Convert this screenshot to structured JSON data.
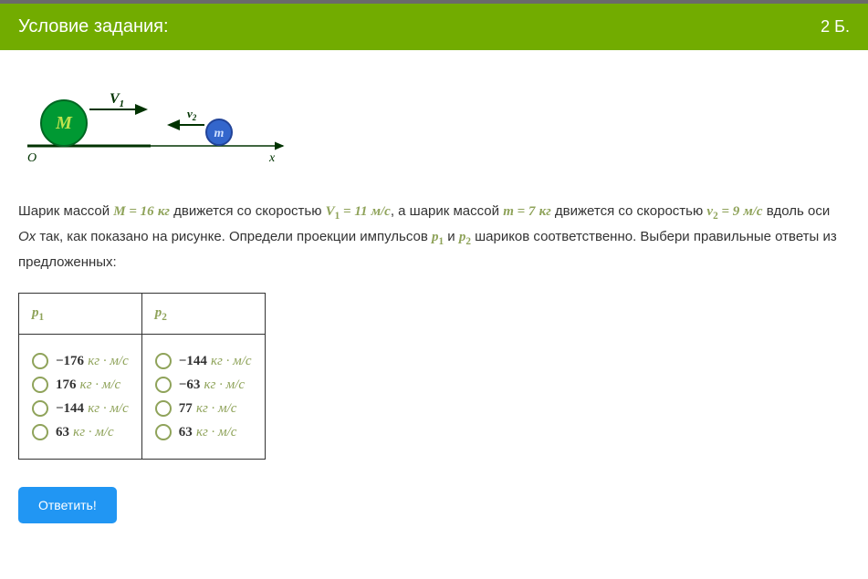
{
  "header": {
    "title": "Условие задания:",
    "points": "2 Б."
  },
  "diagram": {
    "big_label": "M",
    "big_color": "#009933",
    "big_border": "#006622",
    "small_label": "m",
    "small_color": "#3366cc",
    "small_border": "#224499",
    "v1_label": "V",
    "v1_sub": "1",
    "v2_label": "v",
    "v2_sub": "2",
    "origin_label": "O",
    "axis_label": "x",
    "text_color": "#003300"
  },
  "problem": {
    "t1": "Шарик массой ",
    "M_expr": "M = 16",
    "M_unit": "кг",
    "t2": " движется со скоростью ",
    "V1_expr": "V",
    "V1_sub": "1",
    "V1_eq": " = 11",
    "V1_unit": "м/с",
    "t3": ", а шарик массой ",
    "m_expr": "m = 7",
    "m_unit": "кг",
    "t4": " движется со скоростью ",
    "v2_expr": "v",
    "v2_sub": "2",
    "v2_eq": " = 9",
    "v2_unit": "м/с",
    "t5": " вдоль оси ",
    "axis": "Ox",
    "t6": " так, как показано на рисунке. Определи проекции импульсов ",
    "p1": "p",
    "p1_sub": "1",
    "t7": " и ",
    "p2": "p",
    "p2_sub": "2",
    "t8": " шариков соответственно. Выбери правильные ответы из предложенных:"
  },
  "table": {
    "h1": "p",
    "h1_sub": "1",
    "h2": "p",
    "h2_sub": "2",
    "unit": "кг · м/с",
    "col1": [
      "−176",
      "176",
      "−144",
      "63"
    ],
    "col2": [
      "−144",
      "−63",
      "77",
      "63"
    ]
  },
  "submit": "Ответить!"
}
